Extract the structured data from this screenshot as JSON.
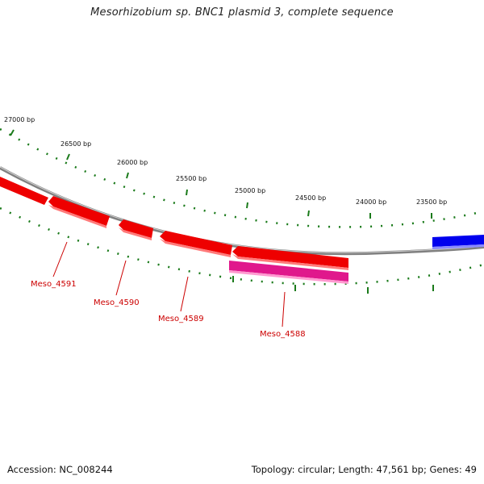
{
  "title": "Mesorhizobium sp. BNC1 plasmid 3, complete sequence",
  "footer": {
    "accession_label": "Accession: NC_008244",
    "summary": "Topology: circular; Length: 47,561 bp; Genes: 49"
  },
  "colors": {
    "backbone": "#7a7a7a",
    "tick_green": "#1a7a1a",
    "gene_forward_red": "#ee0000",
    "gene_reverse_red": "#ff0000",
    "gene_magenta": "#e0188c",
    "gene_blue": "#0000ee",
    "gene_label_red": "#cc0000"
  },
  "ruler": {
    "labels": [
      "27000 bp",
      "26500 bp",
      "26000 bp",
      "25500 bp",
      "25000 bp",
      "24500 bp",
      "24000 bp",
      "23500 bp"
    ]
  },
  "genes": [
    {
      "name": "Meso_4591"
    },
    {
      "name": "Meso_4590"
    },
    {
      "name": "Meso_4589"
    },
    {
      "name": "Meso_4588"
    }
  ]
}
